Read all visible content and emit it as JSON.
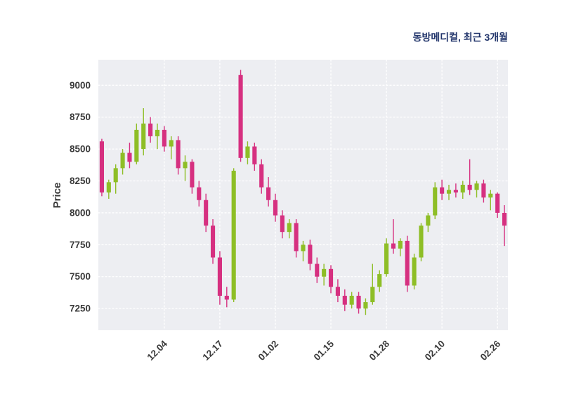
{
  "header": {
    "title": "동방메디컬, 최근 3개월"
  },
  "chart_data": {
    "type": "candlestick",
    "title": "동방메디컬, 최근 3개월",
    "xlabel": "",
    "ylabel": "Price",
    "ylim": [
      7080,
      9200
    ],
    "y_ticks": [
      7250,
      7500,
      7750,
      8000,
      8250,
      8500,
      8750,
      9000
    ],
    "x_ticks": [
      {
        "label": "12.04",
        "index": 9
      },
      {
        "label": "12.17",
        "index": 17
      },
      {
        "label": "01.02",
        "index": 25
      },
      {
        "label": "01.15",
        "index": 33
      },
      {
        "label": "01.28",
        "index": 41
      },
      {
        "label": "02.10",
        "index": 49
      },
      {
        "label": "02.26",
        "index": 57
      }
    ],
    "grid": "dashed",
    "legend": "none",
    "colors": {
      "up": "#8ebe26",
      "down": "#d63080",
      "plot_bg": "#edeef2",
      "grid": "#ffffff",
      "title": "#22356b",
      "tick": "#3a3a3a",
      "ylabel": "#3a3a3a"
    },
    "ohlc_format": [
      "open",
      "high",
      "low",
      "close"
    ],
    "candles": [
      [
        8560,
        8580,
        8130,
        8160
      ],
      [
        8160,
        8260,
        8110,
        8240
      ],
      [
        8240,
        8380,
        8150,
        8350
      ],
      [
        8350,
        8500,
        8300,
        8470
      ],
      [
        8470,
        8550,
        8350,
        8400
      ],
      [
        8400,
        8700,
        8380,
        8650
      ],
      [
        8500,
        8820,
        8450,
        8700
      ],
      [
        8700,
        8750,
        8550,
        8600
      ],
      [
        8600,
        8700,
        8500,
        8650
      ],
      [
        8650,
        8680,
        8480,
        8520
      ],
      [
        8520,
        8600,
        8420,
        8570
      ],
      [
        8570,
        8600,
        8300,
        8350
      ],
      [
        8350,
        8450,
        8250,
        8400
      ],
      [
        8400,
        8420,
        8150,
        8200
      ],
      [
        8200,
        8250,
        8050,
        8100
      ],
      [
        8100,
        8150,
        7850,
        7900
      ],
      [
        7900,
        7950,
        7600,
        7650
      ],
      [
        7650,
        7700,
        7280,
        7350
      ],
      [
        7350,
        7420,
        7260,
        7320
      ],
      [
        7320,
        8350,
        7300,
        8330
      ],
      [
        9080,
        9120,
        8400,
        8430
      ],
      [
        8430,
        8560,
        8380,
        8520
      ],
      [
        8520,
        8550,
        8330,
        8380
      ],
      [
        8380,
        8420,
        8150,
        8200
      ],
      [
        8200,
        8280,
        8050,
        8100
      ],
      [
        8100,
        8150,
        7930,
        7980
      ],
      [
        7980,
        8020,
        7800,
        7850
      ],
      [
        7850,
        7950,
        7800,
        7920
      ],
      [
        7920,
        7950,
        7650,
        7700
      ],
      [
        7700,
        7780,
        7620,
        7750
      ],
      [
        7750,
        7790,
        7550,
        7600
      ],
      [
        7600,
        7650,
        7450,
        7500
      ],
      [
        7500,
        7600,
        7430,
        7560
      ],
      [
        7560,
        7590,
        7370,
        7420
      ],
      [
        7420,
        7480,
        7300,
        7350
      ],
      [
        7350,
        7400,
        7230,
        7280
      ],
      [
        7280,
        7380,
        7250,
        7350
      ],
      [
        7350,
        7380,
        7210,
        7250
      ],
      [
        7250,
        7330,
        7200,
        7300
      ],
      [
        7300,
        7600,
        7280,
        7420
      ],
      [
        7420,
        7550,
        7380,
        7520
      ],
      [
        7520,
        7800,
        7500,
        7760
      ],
      [
        7760,
        7950,
        7680,
        7720
      ],
      [
        7720,
        7800,
        7660,
        7780
      ],
      [
        7780,
        7820,
        7380,
        7430
      ],
      [
        7430,
        7680,
        7400,
        7650
      ],
      [
        7650,
        7920,
        7620,
        7900
      ],
      [
        7900,
        8000,
        7850,
        7980
      ],
      [
        7980,
        8240,
        7950,
        8200
      ],
      [
        8200,
        8260,
        8100,
        8150
      ],
      [
        8150,
        8220,
        8100,
        8180
      ],
      [
        8180,
        8230,
        8120,
        8160
      ],
      [
        8160,
        8250,
        8110,
        8220
      ],
      [
        8220,
        8420,
        8140,
        8180
      ],
      [
        8180,
        8250,
        8120,
        8230
      ],
      [
        8230,
        8260,
        8080,
        8120
      ],
      [
        8120,
        8180,
        8020,
        8150
      ],
      [
        8150,
        8160,
        7960,
        8000
      ],
      [
        8000,
        8060,
        7740,
        7900
      ]
    ]
  }
}
